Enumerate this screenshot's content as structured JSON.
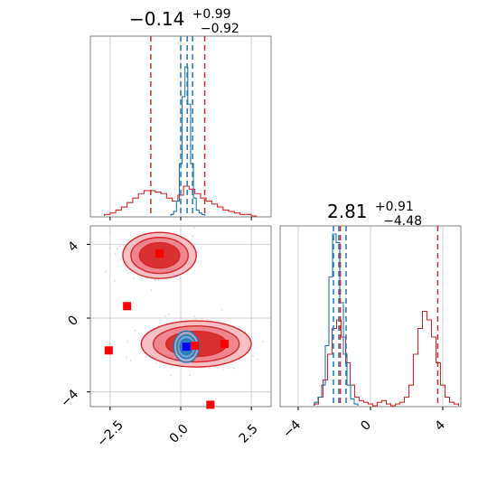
{
  "chart_data": [
    {
      "type": "histogram",
      "panel": "marginal-x",
      "title": {
        "main": "−0.14",
        "sup": "+0.99",
        "sub": "−0.92"
      },
      "xlim": [
        -3.2,
        3.2
      ],
      "grid": true,
      "series": [
        {
          "color": "#d62728",
          "bins_x": [
            -2.6,
            -2.4,
            -2.2,
            -2.0,
            -1.8,
            -1.6,
            -1.4,
            -1.2,
            -1.0,
            -0.8,
            -0.6,
            -0.4,
            -0.2,
            0.0,
            0.2,
            0.4,
            0.6,
            0.8,
            1.0,
            1.2,
            1.4,
            1.6,
            1.8,
            2.0,
            2.2,
            2.4,
            2.6
          ],
          "values": [
            0.01,
            0.02,
            0.04,
            0.06,
            0.09,
            0.12,
            0.15,
            0.17,
            0.17,
            0.16,
            0.15,
            0.12,
            0.1,
            0.14,
            0.2,
            0.18,
            0.15,
            0.12,
            0.1,
            0.08,
            0.06,
            0.04,
            0.03,
            0.02,
            0.01,
            0.01,
            0.0
          ],
          "quantiles": [
            -1.06,
            0.85
          ]
        },
        {
          "color": "#1f77b4",
          "bins_x": [
            -0.3,
            -0.2,
            -0.1,
            0.0,
            0.1,
            0.2,
            0.3,
            0.4,
            0.5,
            0.6,
            0.7,
            0.8
          ],
          "values": [
            0.01,
            0.03,
            0.1,
            0.35,
            0.8,
            1.0,
            0.75,
            0.35,
            0.12,
            0.04,
            0.02,
            0.01
          ],
          "quantiles": [
            0.0,
            0.23,
            0.42
          ]
        }
      ]
    },
    {
      "type": "histogram",
      "panel": "marginal-y",
      "title": {
        "main": "2.81",
        "sup": "+0.91",
        "sub": "−4.48"
      },
      "xlim": [
        -5,
        5
      ],
      "xticks": [
        -4,
        0,
        4
      ],
      "grid": true,
      "series": [
        {
          "color": "#d62728",
          "bins_x": [
            -3.0,
            -2.75,
            -2.5,
            -2.25,
            -2.0,
            -1.75,
            -1.5,
            -1.25,
            -1.0,
            -0.75,
            -0.5,
            -0.25,
            0.0,
            0.25,
            0.5,
            0.75,
            1.0,
            1.25,
            1.5,
            1.75,
            2.0,
            2.25,
            2.5,
            2.75,
            3.0,
            3.25,
            3.5,
            3.75,
            4.0,
            4.25,
            4.5,
            4.75
          ],
          "values": [
            0.01,
            0.05,
            0.15,
            0.3,
            0.45,
            0.5,
            0.4,
            0.25,
            0.12,
            0.05,
            0.03,
            0.02,
            0.01,
            0.0,
            0.02,
            0.03,
            0.01,
            0.0,
            0.01,
            0.02,
            0.05,
            0.12,
            0.3,
            0.45,
            0.55,
            0.5,
            0.4,
            0.25,
            0.12,
            0.05,
            0.02,
            0.01
          ],
          "quantiles": [
            -1.67,
            3.72
          ]
        },
        {
          "color": "#1f77b4",
          "bins_x": [
            -3.0,
            -2.8,
            -2.6,
            -2.4,
            -2.2,
            -2.0,
            -1.8,
            -1.6,
            -1.4,
            -1.2,
            -1.0,
            -0.8
          ],
          "values": [
            0.02,
            0.05,
            0.12,
            0.35,
            0.75,
            1.0,
            0.95,
            0.6,
            0.3,
            0.12,
            0.04,
            0.01
          ],
          "quantiles": [
            -2.05,
            -1.75,
            -1.35
          ]
        }
      ]
    },
    {
      "type": "scatter",
      "panel": "joint",
      "xlim": [
        -3.2,
        3.2
      ],
      "ylim": [
        -4.8,
        5.0
      ],
      "xticks": [
        -2.5,
        0.0,
        2.5
      ],
      "yticks": [
        4,
        0,
        -4
      ],
      "grid": true,
      "points": [
        {
          "x": -0.75,
          "y": 3.5,
          "color": "#ff0000"
        },
        {
          "x": -1.9,
          "y": 0.65,
          "color": "#ff0000"
        },
        {
          "x": -2.55,
          "y": -1.75,
          "color": "#ff0000"
        },
        {
          "x": 0.5,
          "y": -1.5,
          "color": "#ff0000"
        },
        {
          "x": 1.55,
          "y": -1.4,
          "color": "#ff0000"
        },
        {
          "x": 1.05,
          "y": -4.7,
          "color": "#ff0000"
        },
        {
          "x": 0.2,
          "y": -1.55,
          "color": "#0000ff"
        }
      ],
      "contours": [
        {
          "color": "#d62728",
          "cx": -0.75,
          "cy": 3.4,
          "rx": 1.3,
          "ry": 1.25
        },
        {
          "color": "#d62728",
          "cx": 0.55,
          "cy": -1.4,
          "rx": 1.95,
          "ry": 1.25
        },
        {
          "color": "#1f77b4",
          "cx": 0.2,
          "cy": -1.55,
          "rx": 0.45,
          "ry": 0.85
        }
      ]
    }
  ],
  "ticks": {
    "x": [
      "−2.5",
      "0.0",
      "2.5"
    ],
    "y": [
      "4",
      "0",
      "−4"
    ],
    "y_marginal_x": [
      "−4",
      "0",
      "4"
    ]
  }
}
